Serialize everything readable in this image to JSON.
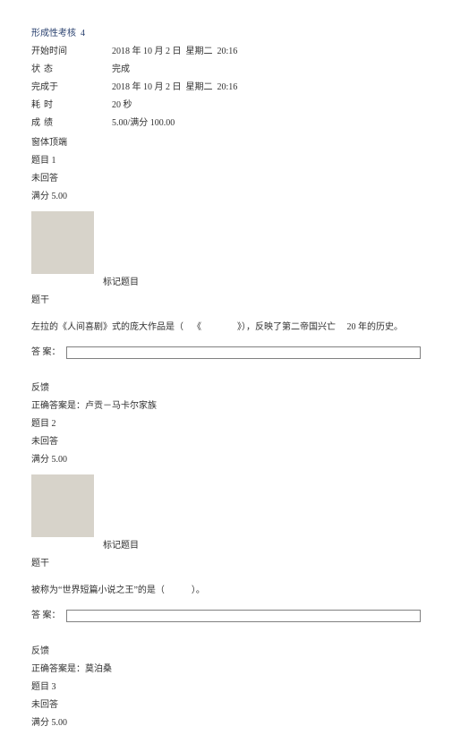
{
  "colors": {
    "title": "#2b4270",
    "text": "#303030",
    "thumb_bg": "#d7d3ca",
    "page_bg": "#ffffff",
    "input_border": "#808080"
  },
  "typography": {
    "base_fontsize_pt": 8,
    "font_family": "SimSun"
  },
  "title": "形成性考核  4",
  "meta": {
    "rows": [
      {
        "label": "开始时间",
        "value": "2018 年 10 月 2 日  星期二  20:16"
      },
      {
        "label": "状态",
        "value": "完成",
        "spaced_label": true
      },
      {
        "label": "完成于",
        "value": "2018 年 10 月 2 日  星期二  20:16"
      },
      {
        "label": "耗时",
        "value": "20 秒",
        "spaced_label": true
      },
      {
        "label": "成绩",
        "value": "5.00/满分 100.00",
        "spaced_label": true
      }
    ]
  },
  "nav_label": "窗体顶端",
  "flag_label": "标记题目",
  "stem_label": "题干",
  "answer_label": "答 案：",
  "feedback_label": "反馈",
  "questions": [
    {
      "number_label": "题目 1",
      "unanswered": "未回答",
      "score": "满分 5.00",
      "stem": "左拉的《人间喜剧》式的庞大作品是（ 《    》），反映了第二帝国兴亡  20 年的历史。",
      "feedback": "正确答案是：卢贡－马卡尔家族"
    },
    {
      "number_label": "题目 2",
      "unanswered": "未回答",
      "score": "满分 5.00",
      "stem": "被称为“世界短篇小说之王”的是（   ）。",
      "feedback": "正确答案是：莫泊桑"
    },
    {
      "number_label": "题目 3",
      "unanswered": "未回答",
      "score": "满分 5.00"
    }
  ]
}
